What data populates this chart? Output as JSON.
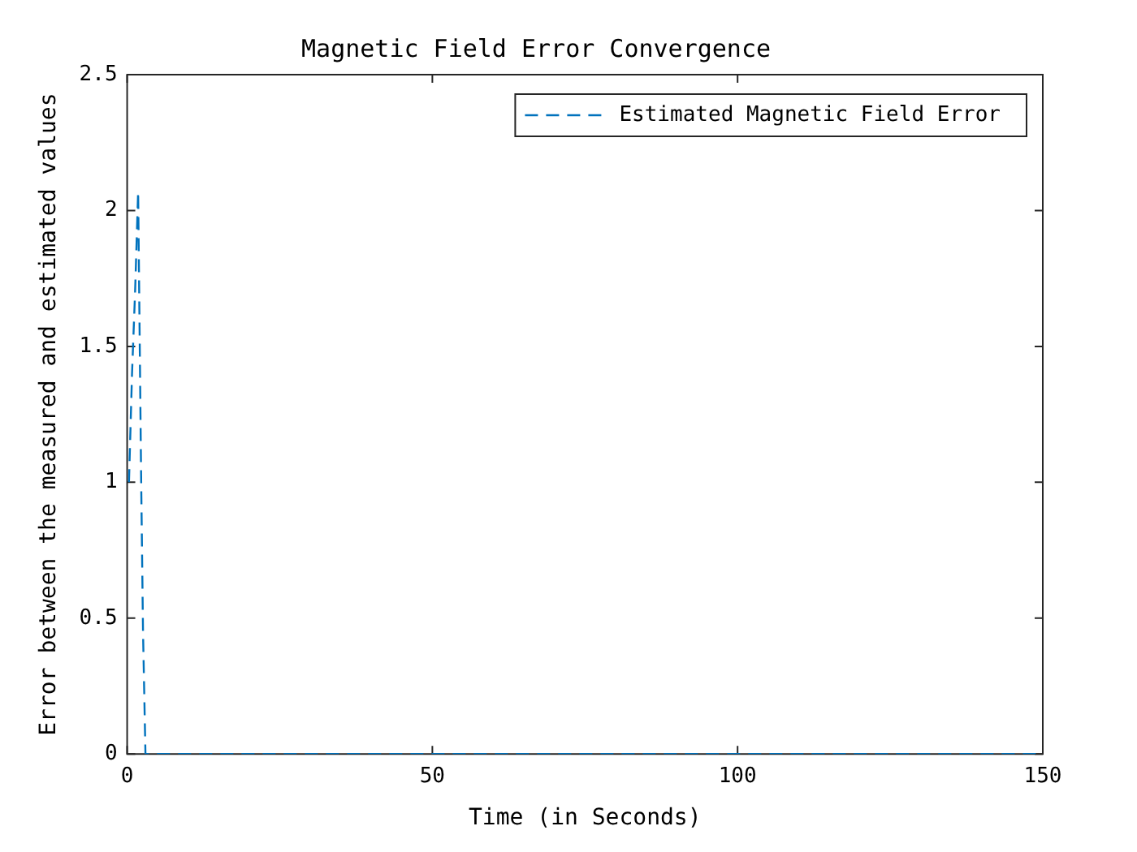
{
  "chart_data": {
    "type": "line",
    "title": "Magnetic Field Error Convergence",
    "xlabel": "Time (in Seconds)",
    "ylabel": "Error between the measured and estimated values",
    "series": [
      {
        "name": "Estimated Magnetic Field Error",
        "color": "#0072bd",
        "x": [
          0.3,
          0.8,
          1.3,
          1.8,
          2.3,
          2.6,
          3,
          10,
          50,
          100,
          150
        ],
        "values": [
          1,
          1.4,
          1.7,
          2.07,
          1.0,
          0.45,
          0,
          0,
          0,
          0,
          0
        ]
      }
    ],
    "xlim": [
      0,
      150
    ],
    "xticks": [
      0,
      50,
      100,
      150
    ],
    "ylim": [
      0,
      2.5
    ],
    "yticks": [
      0,
      0.5,
      1,
      1.5,
      2,
      2.5
    ],
    "legend": "top right",
    "line_style": "dashed",
    "grid": false
  }
}
